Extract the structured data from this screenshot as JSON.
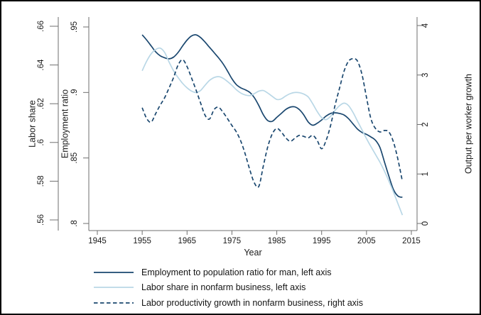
{
  "legend": {
    "items": [
      {
        "label": "Employment to population ratio for man, left axis",
        "series": 0
      },
      {
        "label": "Labor share in nonfarm business, left axis",
        "series": 1
      },
      {
        "label": "Labor productivity growth in nonfarm business, right axis",
        "series": 2
      }
    ]
  },
  "chart_data": {
    "type": "line",
    "grid": false,
    "legend_position": "bottom",
    "axes": {
      "x": {
        "title": "Year",
        "min": 1943.1,
        "max": 2016.27,
        "tick_values": [
          1945,
          1955,
          1965,
          1975,
          1985,
          1995,
          2005,
          2015
        ],
        "tick_labels": [
          "1945",
          "1955",
          "1965",
          "1975",
          "1985",
          "1995",
          "2005",
          "2015"
        ]
      },
      "left_outer": {
        "title": "Labor share",
        "min": 0.5545,
        "max": 0.66476,
        "tick_values": [
          0.56,
          0.58,
          0.6,
          0.62,
          0.64,
          0.66
        ],
        "tick_labels": [
          ".56",
          ".58",
          ".6",
          ".62",
          ".64",
          ".66"
        ]
      },
      "left_inner": {
        "title": "Employment ratio",
        "min": 0.79459,
        "max": 0.95758,
        "tick_values": [
          0.8,
          0.85,
          0.9,
          0.95
        ],
        "tick_labels": [
          ".8",
          ".85",
          ".9",
          ".95"
        ]
      },
      "right": {
        "title": "Output per worker growth",
        "min": -0.1434,
        "max": 4.172,
        "tick_values": [
          0,
          1,
          2,
          3,
          4
        ],
        "tick_labels": [
          "0",
          "1",
          "2",
          "3",
          "4"
        ]
      }
    },
    "series": [
      {
        "id": "employment-to-population-ratio-men",
        "name": "Employment to population ratio for man, left axis",
        "axis": "left_inner",
        "color": "#1a476f",
        "dash": "",
        "points": [
          [
            1955,
            0.944
          ],
          [
            1956,
            0.94
          ],
          [
            1957,
            0.9355
          ],
          [
            1958,
            0.931
          ],
          [
            1959,
            0.928
          ],
          [
            1960,
            0.9265
          ],
          [
            1961,
            0.9257
          ],
          [
            1962,
            0.927
          ],
          [
            1963,
            0.9305
          ],
          [
            1964,
            0.9355
          ],
          [
            1965,
            0.94
          ],
          [
            1966,
            0.9432
          ],
          [
            1967,
            0.944
          ],
          [
            1968,
            0.942
          ],
          [
            1969,
            0.9385
          ],
          [
            1970,
            0.9345
          ],
          [
            1971,
            0.9305
          ],
          [
            1972,
            0.9265
          ],
          [
            1973,
            0.922
          ],
          [
            1974,
            0.9165
          ],
          [
            1975,
            0.9105
          ],
          [
            1976,
            0.906
          ],
          [
            1977,
            0.9035
          ],
          [
            1978,
            0.902
          ],
          [
            1979,
            0.9
          ],
          [
            1980,
            0.896
          ],
          [
            1981,
            0.89
          ],
          [
            1982,
            0.883
          ],
          [
            1983,
            0.8785
          ],
          [
            1984,
            0.878
          ],
          [
            1985,
            0.881
          ],
          [
            1986,
            0.884
          ],
          [
            1987,
            0.887
          ],
          [
            1988,
            0.8888
          ],
          [
            1989,
            0.889
          ],
          [
            1990,
            0.887
          ],
          [
            1991,
            0.883
          ],
          [
            1992,
            0.8775
          ],
          [
            1993,
            0.875
          ],
          [
            1994,
            0.8765
          ],
          [
            1995,
            0.879
          ],
          [
            1996,
            0.882
          ],
          [
            1997,
            0.884
          ],
          [
            1998,
            0.8845
          ],
          [
            1999,
            0.884
          ],
          [
            2000,
            0.8828
          ],
          [
            2001,
            0.88
          ],
          [
            2002,
            0.876
          ],
          [
            2003,
            0.872
          ],
          [
            2004,
            0.8695
          ],
          [
            2005,
            0.868
          ],
          [
            2006,
            0.866
          ],
          [
            2007,
            0.8635
          ],
          [
            2008,
            0.858
          ],
          [
            2009,
            0.847
          ],
          [
            2010,
            0.836
          ],
          [
            2011,
            0.826
          ],
          [
            2012,
            0.821
          ],
          [
            2013,
            0.82
          ]
        ]
      },
      {
        "id": "labor-share-nonfarm-business",
        "name": "Labor share in nonfarm business, left axis",
        "axis": "left_outer",
        "color": "#b9d7e6",
        "dash": "",
        "points": [
          [
            1955,
            0.637
          ],
          [
            1956,
            0.642
          ],
          [
            1957,
            0.6458
          ],
          [
            1958,
            0.648
          ],
          [
            1959,
            0.6487
          ],
          [
            1960,
            0.6465
          ],
          [
            1961,
            0.6415
          ],
          [
            1962,
            0.637
          ],
          [
            1963,
            0.6335
          ],
          [
            1964,
            0.6305
          ],
          [
            1965,
            0.6282
          ],
          [
            1966,
            0.6265
          ],
          [
            1967,
            0.6258
          ],
          [
            1968,
            0.6268
          ],
          [
            1969,
            0.6295
          ],
          [
            1970,
            0.632
          ],
          [
            1971,
            0.6335
          ],
          [
            1972,
            0.634
          ],
          [
            1973,
            0.6332
          ],
          [
            1974,
            0.6315
          ],
          [
            1975,
            0.6295
          ],
          [
            1976,
            0.6272
          ],
          [
            1977,
            0.6255
          ],
          [
            1978,
            0.6245
          ],
          [
            1979,
            0.6242
          ],
          [
            1980,
            0.6252
          ],
          [
            1981,
            0.6265
          ],
          [
            1982,
            0.6268
          ],
          [
            1983,
            0.6255
          ],
          [
            1984,
            0.6238
          ],
          [
            1985,
            0.6222
          ],
          [
            1986,
            0.6225
          ],
          [
            1987,
            0.624
          ],
          [
            1988,
            0.6252
          ],
          [
            1989,
            0.6258
          ],
          [
            1990,
            0.6257
          ],
          [
            1991,
            0.625
          ],
          [
            1992,
            0.6235
          ],
          [
            1993,
            0.62
          ],
          [
            1994,
            0.616
          ],
          [
            1995,
            0.6128
          ],
          [
            1996,
            0.6118
          ],
          [
            1997,
            0.6135
          ],
          [
            1998,
            0.6165
          ],
          [
            1999,
            0.619
          ],
          [
            2000,
            0.6203
          ],
          [
            2001,
            0.619
          ],
          [
            2002,
            0.6155
          ],
          [
            2003,
            0.611
          ],
          [
            2004,
            0.6065
          ],
          [
            2005,
            0.602
          ],
          [
            2006,
            0.5978
          ],
          [
            2007,
            0.5938
          ],
          [
            2008,
            0.5898
          ],
          [
            2009,
            0.5852
          ],
          [
            2010,
            0.58
          ],
          [
            2011,
            0.5745
          ],
          [
            2012,
            0.5685
          ],
          [
            2013,
            0.5625
          ]
        ]
      },
      {
        "id": "labor-productivity-growth-nonfarm-business",
        "name": "Labor productivity growth in nonfarm business, right axis",
        "axis": "right",
        "color": "#1a476f",
        "dash": "5.5,3.5",
        "points": [
          [
            1955,
            2.34
          ],
          [
            1956,
            2.12
          ],
          [
            1957,
            2.05
          ],
          [
            1958,
            2.22
          ],
          [
            1959,
            2.39
          ],
          [
            1960,
            2.54
          ],
          [
            1961,
            2.74
          ],
          [
            1962,
            2.95
          ],
          [
            1963,
            3.2
          ],
          [
            1964,
            3.31
          ],
          [
            1965,
            3.17
          ],
          [
            1966,
            2.94
          ],
          [
            1967,
            2.7
          ],
          [
            1968,
            2.44
          ],
          [
            1969,
            2.19
          ],
          [
            1970,
            2.11
          ],
          [
            1971,
            2.3
          ],
          [
            1972,
            2.35
          ],
          [
            1973,
            2.25
          ],
          [
            1974,
            2.12
          ],
          [
            1975,
            1.98
          ],
          [
            1976,
            1.85
          ],
          [
            1977,
            1.66
          ],
          [
            1978,
            1.39
          ],
          [
            1979,
            1.08
          ],
          [
            1980,
            0.82
          ],
          [
            1981,
            0.75
          ],
          [
            1982,
            1.16
          ],
          [
            1983,
            1.55
          ],
          [
            1984,
            1.81
          ],
          [
            1985,
            1.92
          ],
          [
            1986,
            1.85
          ],
          [
            1987,
            1.73
          ],
          [
            1988,
            1.66
          ],
          [
            1989,
            1.72
          ],
          [
            1990,
            1.78
          ],
          [
            1991,
            1.76
          ],
          [
            1992,
            1.73
          ],
          [
            1993,
            1.78
          ],
          [
            1994,
            1.68
          ],
          [
            1995,
            1.51
          ],
          [
            1996,
            1.68
          ],
          [
            1997,
            1.98
          ],
          [
            1998,
            2.39
          ],
          [
            1999,
            2.74
          ],
          [
            2000,
            3.08
          ],
          [
            2001,
            3.28
          ],
          [
            2002,
            3.33
          ],
          [
            2003,
            3.28
          ],
          [
            2004,
            3.01
          ],
          [
            2005,
            2.55
          ],
          [
            2006,
            2.11
          ],
          [
            2007,
            1.92
          ],
          [
            2008,
            1.85
          ],
          [
            2009,
            1.88
          ],
          [
            2010,
            1.85
          ],
          [
            2011,
            1.65
          ],
          [
            2012,
            1.3
          ],
          [
            2013,
            0.85
          ]
        ]
      }
    ]
  }
}
